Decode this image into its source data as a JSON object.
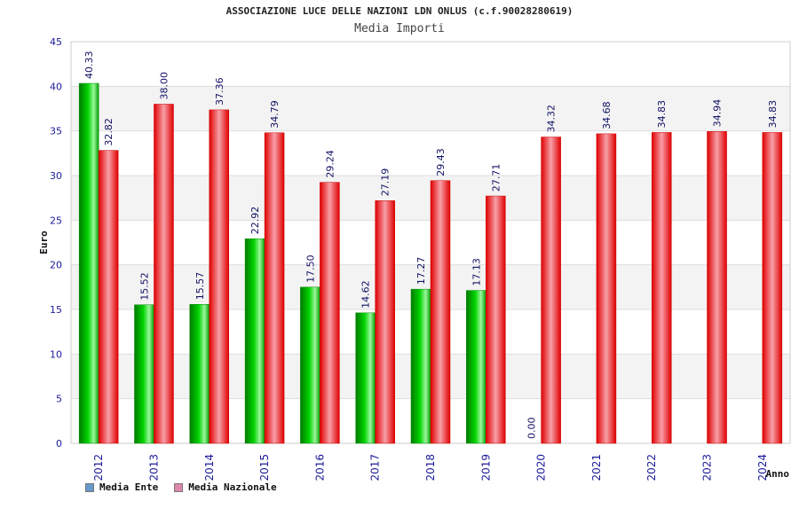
{
  "chart_data": {
    "type": "bar",
    "title": "ASSOCIAZIONE LUCE DELLE NAZIONI LDN ONLUS (c.f.90028280619)",
    "subtitle": "Media Importi",
    "xlabel": "Anno",
    "ylabel": "Euro",
    "ylim": [
      0,
      45
    ],
    "yticks": [
      "0",
      "5",
      "10",
      "15",
      "20",
      "25",
      "30",
      "35",
      "40",
      "45"
    ],
    "categories": [
      "2012",
      "2013",
      "2014",
      "2015",
      "2016",
      "2017",
      "2018",
      "2019",
      "2020",
      "2021",
      "2022",
      "2023",
      "2024"
    ],
    "series": [
      {
        "name": "Media Ente",
        "color": "#00b000",
        "legend_color": "#6699cc",
        "values": [
          40.33,
          15.52,
          15.57,
          22.92,
          17.5,
          14.62,
          17.27,
          17.13,
          0.0,
          null,
          null,
          null,
          null
        ],
        "labels": [
          "40.33",
          "15.52",
          "15.57",
          "22.92",
          "17.50",
          "14.62",
          "17.27",
          "17.13",
          "0.00",
          "",
          "",
          "",
          ""
        ]
      },
      {
        "name": "Media Nazionale",
        "color": "#ee1111",
        "legend_color": "#dd88aa",
        "values": [
          32.82,
          38.0,
          37.36,
          34.79,
          29.24,
          27.19,
          29.43,
          27.71,
          34.32,
          34.68,
          34.83,
          34.94,
          34.83
        ],
        "labels": [
          "32.82",
          "38.00",
          "37.36",
          "34.79",
          "29.24",
          "27.19",
          "29.43",
          "27.71",
          "34.32",
          "34.68",
          "34.83",
          "34.94",
          "34.83"
        ]
      }
    ],
    "grid": true,
    "legend": "bottom-left"
  }
}
